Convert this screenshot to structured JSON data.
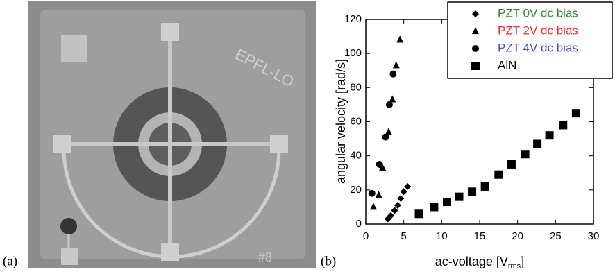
{
  "panel_labels": [
    "(a)",
    "(b)"
  ],
  "photo": {
    "labels": [
      "EPFL-LO",
      "#8"
    ]
  },
  "chart_data": {
    "type": "scatter",
    "y_label": "angular velocity [rad/s]",
    "x_label": [
      "ac-voltage [V",
      "rms",
      "]"
    ],
    "xlim": [
      0,
      30
    ],
    "xticks": [
      0,
      5,
      10,
      15,
      20,
      25,
      30
    ],
    "ylim": [
      0,
      120
    ],
    "yticks": [
      0,
      20,
      40,
      60,
      80,
      100,
      120
    ],
    "legend": "top-right",
    "series": [
      {
        "name": "PZT 0V dc bias",
        "marker": "diamond",
        "color": "#000000",
        "label_color": "#2e8b2e",
        "x": [
          2.9,
          3.3,
          3.8,
          4.2,
          4.6,
          5.0,
          5.5
        ],
        "values": [
          3,
          5,
          8,
          11,
          15,
          19,
          22
        ]
      },
      {
        "name": "PZT 2V dc bias",
        "marker": "triangle",
        "color": "#000000",
        "label_color": "#e83030",
        "x": [
          1.0,
          1.7,
          2.2,
          3.0,
          3.5,
          4.0,
          4.5
        ],
        "values": [
          10,
          17,
          33,
          54,
          73,
          93,
          108
        ]
      },
      {
        "name": "PZT 4V dc bias",
        "marker": "circle",
        "color": "#000000",
        "label_color": "#4848c8",
        "x": [
          0.8,
          1.8,
          2.6,
          3.1,
          3.6
        ],
        "values": [
          18,
          35,
          51,
          70,
          88
        ]
      },
      {
        "name": "AlN",
        "marker": "square",
        "color": "#000000",
        "label_color": "#000000",
        "x": [
          7.0,
          9.0,
          10.7,
          12.3,
          14.0,
          15.7,
          17.5,
          19.2,
          21.0,
          22.6,
          24.2,
          26.0,
          27.7
        ],
        "values": [
          6,
          10,
          13,
          16,
          19,
          22,
          29,
          35,
          41,
          47,
          52,
          58,
          65
        ]
      }
    ]
  }
}
